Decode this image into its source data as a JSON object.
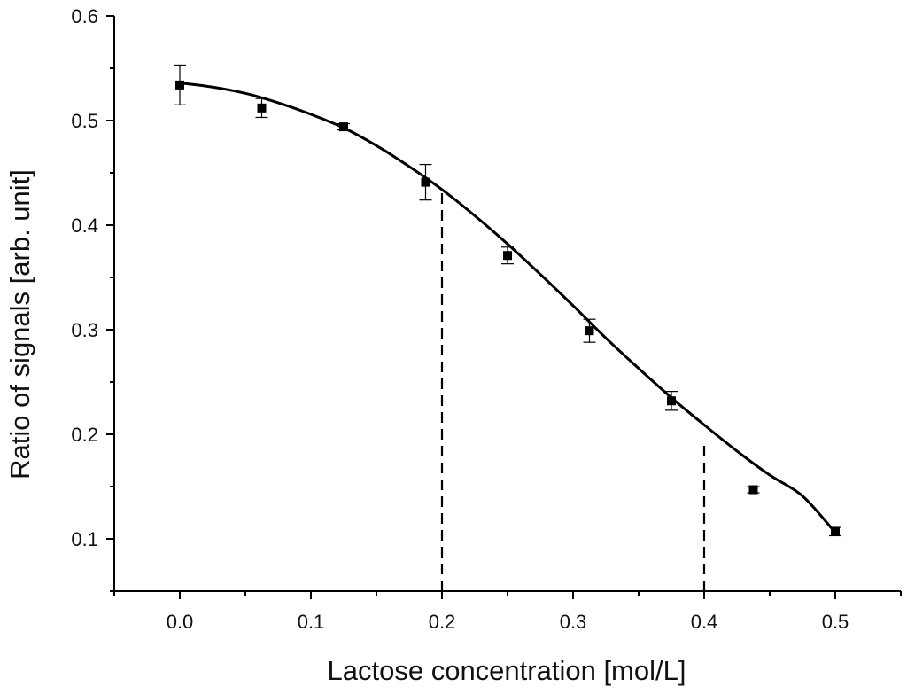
{
  "chart_data": {
    "type": "scatter",
    "title": "",
    "xlabel": "Lactose concentration [mol/L]",
    "ylabel": "Ratio of signals [arb. unit]",
    "xlim": [
      -0.05,
      0.55
    ],
    "ylim": [
      0.05,
      0.6
    ],
    "x_ticks": [
      0.0,
      0.1,
      0.2,
      0.3,
      0.4,
      0.5
    ],
    "x_tick_labels": [
      "0.0",
      "0.1",
      "0.2",
      "0.3",
      "0.4",
      "0.5"
    ],
    "y_ticks": [
      0.1,
      0.2,
      0.3,
      0.4,
      0.5,
      0.6
    ],
    "y_tick_labels": [
      "0.1",
      "0.2",
      "0.3",
      "0.4",
      "0.5",
      "0.6"
    ],
    "grid": false,
    "legend": "none",
    "series": [
      {
        "kind": "points_with_error_bars",
        "marker": "square",
        "color": "#000000",
        "x": [
          0.0,
          0.0625,
          0.125,
          0.1875,
          0.25,
          0.3125,
          0.375,
          0.4375,
          0.5
        ],
        "y": [
          0.534,
          0.512,
          0.494,
          0.441,
          0.371,
          0.299,
          0.232,
          0.147,
          0.107
        ],
        "error": [
          0.019,
          0.009,
          0.003,
          0.017,
          0.008,
          0.011,
          0.009,
          0.003,
          0.004
        ]
      },
      {
        "kind": "fit_curve",
        "color": "#000000",
        "x": [
          0.0,
          0.025,
          0.05,
          0.075,
          0.1,
          0.125,
          0.15,
          0.175,
          0.2,
          0.225,
          0.25,
          0.275,
          0.3,
          0.325,
          0.35,
          0.375,
          0.4,
          0.425,
          0.45,
          0.475,
          0.5
        ],
        "y": [
          0.536,
          0.532,
          0.526,
          0.517,
          0.506,
          0.493,
          0.476,
          0.456,
          0.434,
          0.409,
          0.382,
          0.353,
          0.323,
          0.292,
          0.263,
          0.235,
          0.209,
          0.184,
          0.161,
          0.141,
          0.106
        ]
      }
    ],
    "reference_lines": [
      {
        "x": 0.2,
        "y_top": 0.434,
        "style": "dashed"
      },
      {
        "x": 0.4,
        "y_top": 0.191,
        "style": "dashed"
      }
    ]
  }
}
